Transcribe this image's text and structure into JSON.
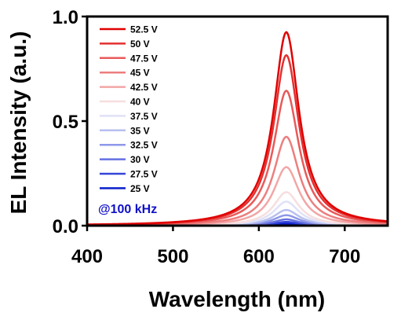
{
  "chart_data": {
    "type": "line",
    "title": "",
    "xlabel": "Wavelength (nm)",
    "ylabel": "EL Intensity (a.u.)",
    "xlim": [
      400,
      750
    ],
    "ylim": [
      0,
      1.0
    ],
    "xticks": [
      400,
      500,
      600,
      700
    ],
    "yticks": [
      0.0,
      0.5,
      1.0
    ],
    "xtick_labels": [
      "400",
      "500",
      "600",
      "700"
    ],
    "ytick_labels": [
      "0.0",
      "0.5",
      "1.0"
    ],
    "grid": false,
    "legend_position": "top-left",
    "annotation": "@100 kHz",
    "annotation_color": "#1010c8",
    "peak_wavelength": 632,
    "series": [
      {
        "name": "52.5 V",
        "color": "#e00000",
        "peak": 0.925
      },
      {
        "name": "50 V",
        "color": "#e43030",
        "peak": 0.815
      },
      {
        "name": "47.5 V",
        "color": "#e85a5a",
        "peak": 0.645
      },
      {
        "name": "45 V",
        "color": "#ec7e7e",
        "peak": 0.425
      },
      {
        "name": "42.5 V",
        "color": "#f2a6a6",
        "peak": 0.28
      },
      {
        "name": "40 V",
        "color": "#f7dede",
        "peak": 0.16
      },
      {
        "name": "37.5 V",
        "color": "#dfe2f8",
        "peak": 0.115
      },
      {
        "name": "35 V",
        "color": "#b8bff0",
        "peak": 0.075
      },
      {
        "name": "32.5 V",
        "color": "#8e98e8",
        "peak": 0.05
      },
      {
        "name": "30 V",
        "color": "#6470e0",
        "peak": 0.03
      },
      {
        "name": "27.5 V",
        "color": "#3545d8",
        "peak": 0.018
      },
      {
        "name": "25 V",
        "color": "#0a1fcc",
        "peak": 0.01
      }
    ]
  }
}
